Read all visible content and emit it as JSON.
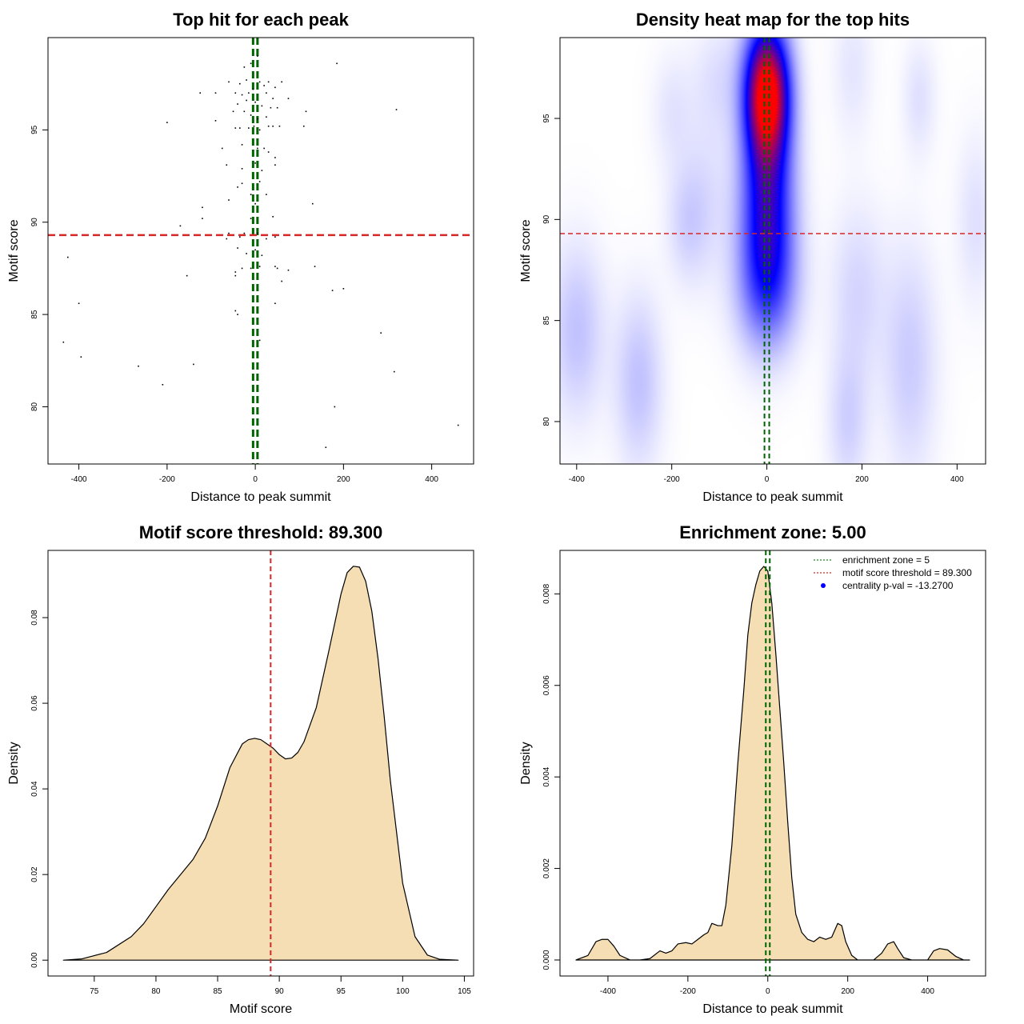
{
  "chart_data": [
    {
      "type": "scatter",
      "title": "Top hit for each peak",
      "xlabel": "Distance to peak summit",
      "ylabel": "Motif score",
      "xlim": [
        -470,
        495
      ],
      "ylim": [
        76.9,
        100.0
      ],
      "xticks": [
        -400,
        -200,
        0,
        200,
        400
      ],
      "yticks": [
        80,
        85,
        90,
        95
      ],
      "xtick_labels": [
        "-400",
        "-200",
        "0",
        "200",
        "400"
      ],
      "ytick_labels": [
        "80",
        "85",
        "90",
        "95"
      ],
      "hlines": [
        {
          "y": 89.3,
          "color": "#d62728",
          "style": "dashed",
          "label": "motif score threshold"
        }
      ],
      "vlines": [
        {
          "x": -5,
          "color": "#006400",
          "style": "dashed"
        },
        {
          "x": 5,
          "color": "#006400",
          "style": "dashed"
        }
      ],
      "points": [
        [
          -10,
          98.6
        ],
        [
          5,
          99.0
        ],
        [
          -25,
          98.4
        ],
        [
          185,
          98.6
        ],
        [
          -60,
          97.6
        ],
        [
          -35,
          97.5
        ],
        [
          -20,
          97.7
        ],
        [
          -5,
          97.2
        ],
        [
          10,
          97.6
        ],
        [
          20,
          97.4
        ],
        [
          30,
          97.6
        ],
        [
          45,
          97.3
        ],
        [
          60,
          97.6
        ],
        [
          -125,
          97.0
        ],
        [
          -90,
          97.0
        ],
        [
          -45,
          97.0
        ],
        [
          -30,
          96.9
        ],
        [
          -15,
          97.0
        ],
        [
          25,
          97.0
        ],
        [
          40,
          96.7
        ],
        [
          75,
          96.7
        ],
        [
          -40,
          96.4
        ],
        [
          -20,
          96.6
        ],
        [
          0,
          96.5
        ],
        [
          15,
          96.3
        ],
        [
          35,
          96.2
        ],
        [
          50,
          96.2
        ],
        [
          -50,
          96.0
        ],
        [
          -25,
          96.0
        ],
        [
          -10,
          95.8
        ],
        [
          5,
          95.6
        ],
        [
          25,
          95.7
        ],
        [
          115,
          96.0
        ],
        [
          320,
          96.1
        ],
        [
          -200,
          95.4
        ],
        [
          -90,
          95.5
        ],
        [
          -45,
          95.1
        ],
        [
          -35,
          95.1
        ],
        [
          -15,
          95.1
        ],
        [
          -3,
          95.2
        ],
        [
          10,
          95.0
        ],
        [
          30,
          95.2
        ],
        [
          40,
          95.2
        ],
        [
          55,
          95.2
        ],
        [
          110,
          95.2
        ],
        [
          -75,
          94.0
        ],
        [
          -30,
          94.2
        ],
        [
          5,
          94.0
        ],
        [
          20,
          94.0
        ],
        [
          30,
          93.8
        ],
        [
          45,
          93.5
        ],
        [
          -65,
          93.1
        ],
        [
          -30,
          92.9
        ],
        [
          0,
          93.2
        ],
        [
          15,
          92.8
        ],
        [
          45,
          93.1
        ],
        [
          -30,
          92.1
        ],
        [
          -40,
          91.9
        ],
        [
          10,
          92.2
        ],
        [
          -10,
          91.5
        ],
        [
          25,
          91.5
        ],
        [
          -60,
          91.2
        ],
        [
          0,
          91.0
        ],
        [
          130,
          91.0
        ],
        [
          -120,
          90.8
        ],
        [
          -120,
          90.2
        ],
        [
          -10,
          90.2
        ],
        [
          40,
          90.3
        ],
        [
          -170,
          89.8
        ],
        [
          -60,
          89.4
        ],
        [
          -65,
          89.1
        ],
        [
          -35,
          89.2
        ],
        [
          -25,
          89.4
        ],
        [
          5,
          89.4
        ],
        [
          25,
          89.1
        ],
        [
          45,
          89.2
        ],
        [
          -40,
          88.6
        ],
        [
          -20,
          88.3
        ],
        [
          0,
          88.5
        ],
        [
          15,
          88.2
        ],
        [
          -425,
          88.1
        ],
        [
          -10,
          87.5
        ],
        [
          10,
          87.6
        ],
        [
          -45,
          87.3
        ],
        [
          -45,
          87.1
        ],
        [
          -30,
          87.5
        ],
        [
          45,
          87.6
        ],
        [
          50,
          87.5
        ],
        [
          75,
          87.4
        ],
        [
          135,
          87.6
        ],
        [
          -155,
          87.1
        ],
        [
          60,
          86.8
        ],
        [
          175,
          86.3
        ],
        [
          200,
          86.4
        ],
        [
          -400,
          85.6
        ],
        [
          45,
          85.6
        ],
        [
          -45,
          85.2
        ],
        [
          -40,
          85.0
        ],
        [
          -435,
          83.5
        ],
        [
          285,
          84.0
        ],
        [
          10,
          83.6
        ],
        [
          -395,
          82.7
        ],
        [
          -265,
          82.2
        ],
        [
          -140,
          82.3
        ],
        [
          315,
          81.9
        ],
        [
          -210,
          81.2
        ],
        [
          180,
          80.0
        ],
        [
          460,
          79.0
        ],
        [
          160,
          77.8
        ]
      ]
    },
    {
      "type": "heatmap",
      "title": "Density heat map for the top hits",
      "xlabel": "Distance to peak summit",
      "ylabel": "Motif score",
      "xlim": [
        -435,
        460
      ],
      "ylim": [
        77.9,
        99.0
      ],
      "xticks": [
        -400,
        -200,
        0,
        200,
        400
      ],
      "yticks": [
        80,
        85,
        90,
        95
      ],
      "xtick_labels": [
        "-400",
        "-200",
        "0",
        "200",
        "400"
      ],
      "ytick_labels": [
        "80",
        "85",
        "90",
        "95"
      ],
      "colormap": [
        "#ffffff",
        "#0000ff",
        "#ff0000"
      ],
      "hlines": [
        {
          "y": 89.3,
          "color": "#d62728",
          "style": "dashed"
        }
      ],
      "vlines": [
        {
          "x": -5,
          "color": "#006400",
          "style": "dashed"
        },
        {
          "x": 5,
          "color": "#006400",
          "style": "dashed"
        }
      ],
      "density_peaks": [
        {
          "x": 0,
          "y": 96.3,
          "sx": 32,
          "sy": 2.3,
          "w": 1.05
        },
        {
          "x": 0,
          "y": 90.5,
          "sx": 38,
          "sy": 3.2,
          "w": 0.55
        },
        {
          "x": 0,
          "y": 86.5,
          "sx": 45,
          "sy": 2.2,
          "w": 0.22
        },
        {
          "x": -400,
          "y": 84.5,
          "sx": 40,
          "sy": 3.0,
          "w": 0.12
        },
        {
          "x": -270,
          "y": 82.0,
          "sx": 35,
          "sy": 3.0,
          "w": 0.12
        },
        {
          "x": 300,
          "y": 83.0,
          "sx": 40,
          "sy": 4.0,
          "w": 0.1
        },
        {
          "x": 190,
          "y": 86.5,
          "sx": 40,
          "sy": 3.0,
          "w": 0.08
        },
        {
          "x": 170,
          "y": 80.0,
          "sx": 30,
          "sy": 2.5,
          "w": 0.09
        },
        {
          "x": 320,
          "y": 96.0,
          "sx": 25,
          "sy": 2.0,
          "w": 0.06
        },
        {
          "x": 180,
          "y": 97.5,
          "sx": 30,
          "sy": 2.5,
          "w": 0.05
        },
        {
          "x": -170,
          "y": 89.8,
          "sx": 30,
          "sy": 2.0,
          "w": 0.07
        },
        {
          "x": -130,
          "y": 91.0,
          "sx": 40,
          "sy": 3.0,
          "w": 0.06
        },
        {
          "x": 440,
          "y": 90.0,
          "sx": 30,
          "sy": 3.0,
          "w": 0.06
        },
        {
          "x": -200,
          "y": 95.4,
          "sx": 30,
          "sy": 2.0,
          "w": 0.05
        },
        {
          "x": -100,
          "y": 97.0,
          "sx": 40,
          "sy": 2.0,
          "w": 0.06
        }
      ]
    },
    {
      "type": "area",
      "title": "Motif score threshold: 89.300",
      "xlabel": "Motif score",
      "ylabel": "Density",
      "xlim": [
        71.25,
        105.75
      ],
      "ylim": [
        -0.0037,
        0.0957
      ],
      "xticks": [
        75,
        80,
        85,
        90,
        95,
        100,
        105
      ],
      "yticks": [
        0.0,
        0.02,
        0.04,
        0.06,
        0.08
      ],
      "xtick_labels": [
        "75",
        "80",
        "85",
        "90",
        "95",
        "100",
        "105"
      ],
      "ytick_labels": [
        "0.00",
        "0.02",
        "0.04",
        "0.06",
        "0.08"
      ],
      "fill": "#f5deb3",
      "vlines": [
        {
          "x": 89.3,
          "color": "#d62728",
          "style": "dashed"
        }
      ],
      "x": [
        72.5,
        74,
        76,
        78,
        79,
        80,
        81,
        82,
        83,
        84,
        85,
        86,
        87,
        87.5,
        88,
        88.5,
        89,
        89.5,
        90,
        90.5,
        91,
        91.5,
        92,
        93,
        94,
        95,
        95.5,
        96,
        96.5,
        97,
        97.5,
        98,
        98.5,
        99,
        100,
        101,
        102,
        103,
        104.5
      ],
      "y": [
        0.0,
        0.0003,
        0.0018,
        0.0055,
        0.0085,
        0.0125,
        0.0165,
        0.02,
        0.0235,
        0.0285,
        0.036,
        0.045,
        0.0505,
        0.0515,
        0.0518,
        0.0515,
        0.0505,
        0.0495,
        0.048,
        0.047,
        0.0472,
        0.0485,
        0.051,
        0.059,
        0.072,
        0.0855,
        0.0905,
        0.092,
        0.0918,
        0.0885,
        0.0815,
        0.0705,
        0.057,
        0.042,
        0.018,
        0.0055,
        0.0012,
        0.0002,
        0.0
      ]
    },
    {
      "type": "area",
      "title": "Enrichment zone: 5.00",
      "xlabel": "Distance to peak summit",
      "ylabel": "Density",
      "xlim": [
        -520,
        545
      ],
      "ylim": [
        -0.00035,
        0.00895
      ],
      "xticks": [
        -400,
        -200,
        0,
        200,
        400
      ],
      "yticks": [
        0.0,
        0.002,
        0.004,
        0.006,
        0.008
      ],
      "xtick_labels": [
        "-400",
        "-200",
        "0",
        "200",
        "400"
      ],
      "ytick_labels": [
        "0.000",
        "0.002",
        "0.004",
        "0.006",
        "0.008"
      ],
      "fill": "#f5deb3",
      "vlines": [
        {
          "x": -5,
          "color": "#006400",
          "style": "dashed"
        },
        {
          "x": 5,
          "color": "#006400",
          "style": "dashed"
        }
      ],
      "x": [
        -480,
        -450,
        -430,
        -415,
        -400,
        -385,
        -370,
        -345,
        -320,
        -295,
        -270,
        -255,
        -240,
        -225,
        -205,
        -190,
        -175,
        -160,
        -150,
        -140,
        -125,
        -115,
        -105,
        -90,
        -75,
        -60,
        -50,
        -40,
        -30,
        -20,
        -10,
        0,
        10,
        20,
        30,
        40,
        50,
        60,
        70,
        85,
        100,
        115,
        130,
        145,
        160,
        175,
        185,
        195,
        210,
        225,
        240,
        265,
        285,
        300,
        315,
        325,
        340,
        360,
        380,
        400,
        415,
        430,
        450,
        470,
        490,
        505
      ],
      "y": [
        0.0,
        0.0001,
        0.0004,
        0.00045,
        0.00045,
        0.0003,
        0.0001,
        0.0,
        0.0,
        3e-05,
        0.0002,
        0.00015,
        0.0002,
        0.00035,
        0.00038,
        0.00035,
        0.00045,
        0.00055,
        0.0006,
        0.0008,
        0.00075,
        0.00075,
        0.0012,
        0.0025,
        0.0043,
        0.0059,
        0.0071,
        0.0078,
        0.0082,
        0.0085,
        0.0086,
        0.0085,
        0.0078,
        0.0067,
        0.0055,
        0.0043,
        0.003,
        0.0018,
        0.001,
        0.0006,
        0.00045,
        0.0004,
        0.0005,
        0.00045,
        0.0005,
        0.0008,
        0.00075,
        0.0004,
        0.0001,
        0.0,
        0.0,
        0.0,
        0.00015,
        0.00035,
        0.0004,
        0.00025,
        5e-05,
        0.0,
        0.0,
        0.0,
        0.0002,
        0.00025,
        0.00022,
        8e-05,
        0.0,
        0.0
      ],
      "legend": [
        {
          "label": "enrichment zone = 5",
          "color": "#228b22",
          "style": "dotted"
        },
        {
          "label": "motif score threshold = 89.300",
          "color": "#d62728",
          "style": "dotted"
        },
        {
          "label": "centrality p-val = -13.2700",
          "color": "#0000ff",
          "style": "point"
        }
      ],
      "legend_position": "top-right"
    }
  ]
}
